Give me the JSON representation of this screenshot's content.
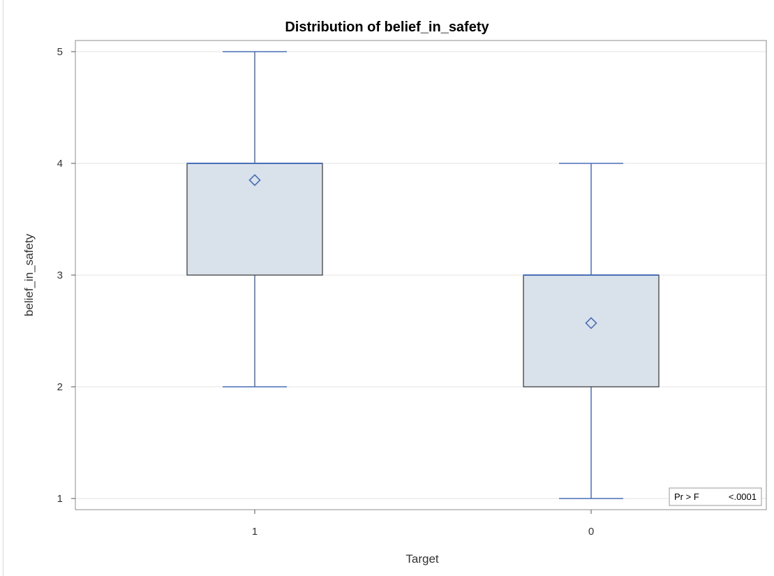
{
  "chart_data": {
    "type": "box",
    "title": "Distribution of belief_in_safety",
    "xlabel": "Target",
    "ylabel": "belief_in_safety",
    "ylim": [
      0.9,
      5.1
    ],
    "yticks": [
      1,
      2,
      3,
      4,
      5
    ],
    "grid": "horizontal",
    "categories": [
      "1",
      "0"
    ],
    "boxes": [
      {
        "category": "1",
        "min": 2,
        "q1": 3,
        "median": 4,
        "q3": 4,
        "max": 5,
        "mean": 3.85
      },
      {
        "category": "0",
        "min": 1,
        "q1": 2,
        "median": 3,
        "q3": 3,
        "max": 4,
        "mean": 2.57
      }
    ],
    "inset": {
      "label": "Pr > F",
      "value": "<.0001"
    },
    "colors": {
      "box_fill": "#d9e1eb",
      "box_edge": "#404040",
      "whisker": "#4a6eb5",
      "grid": "#e3e3e3",
      "frame": "#8c8c8c"
    }
  }
}
